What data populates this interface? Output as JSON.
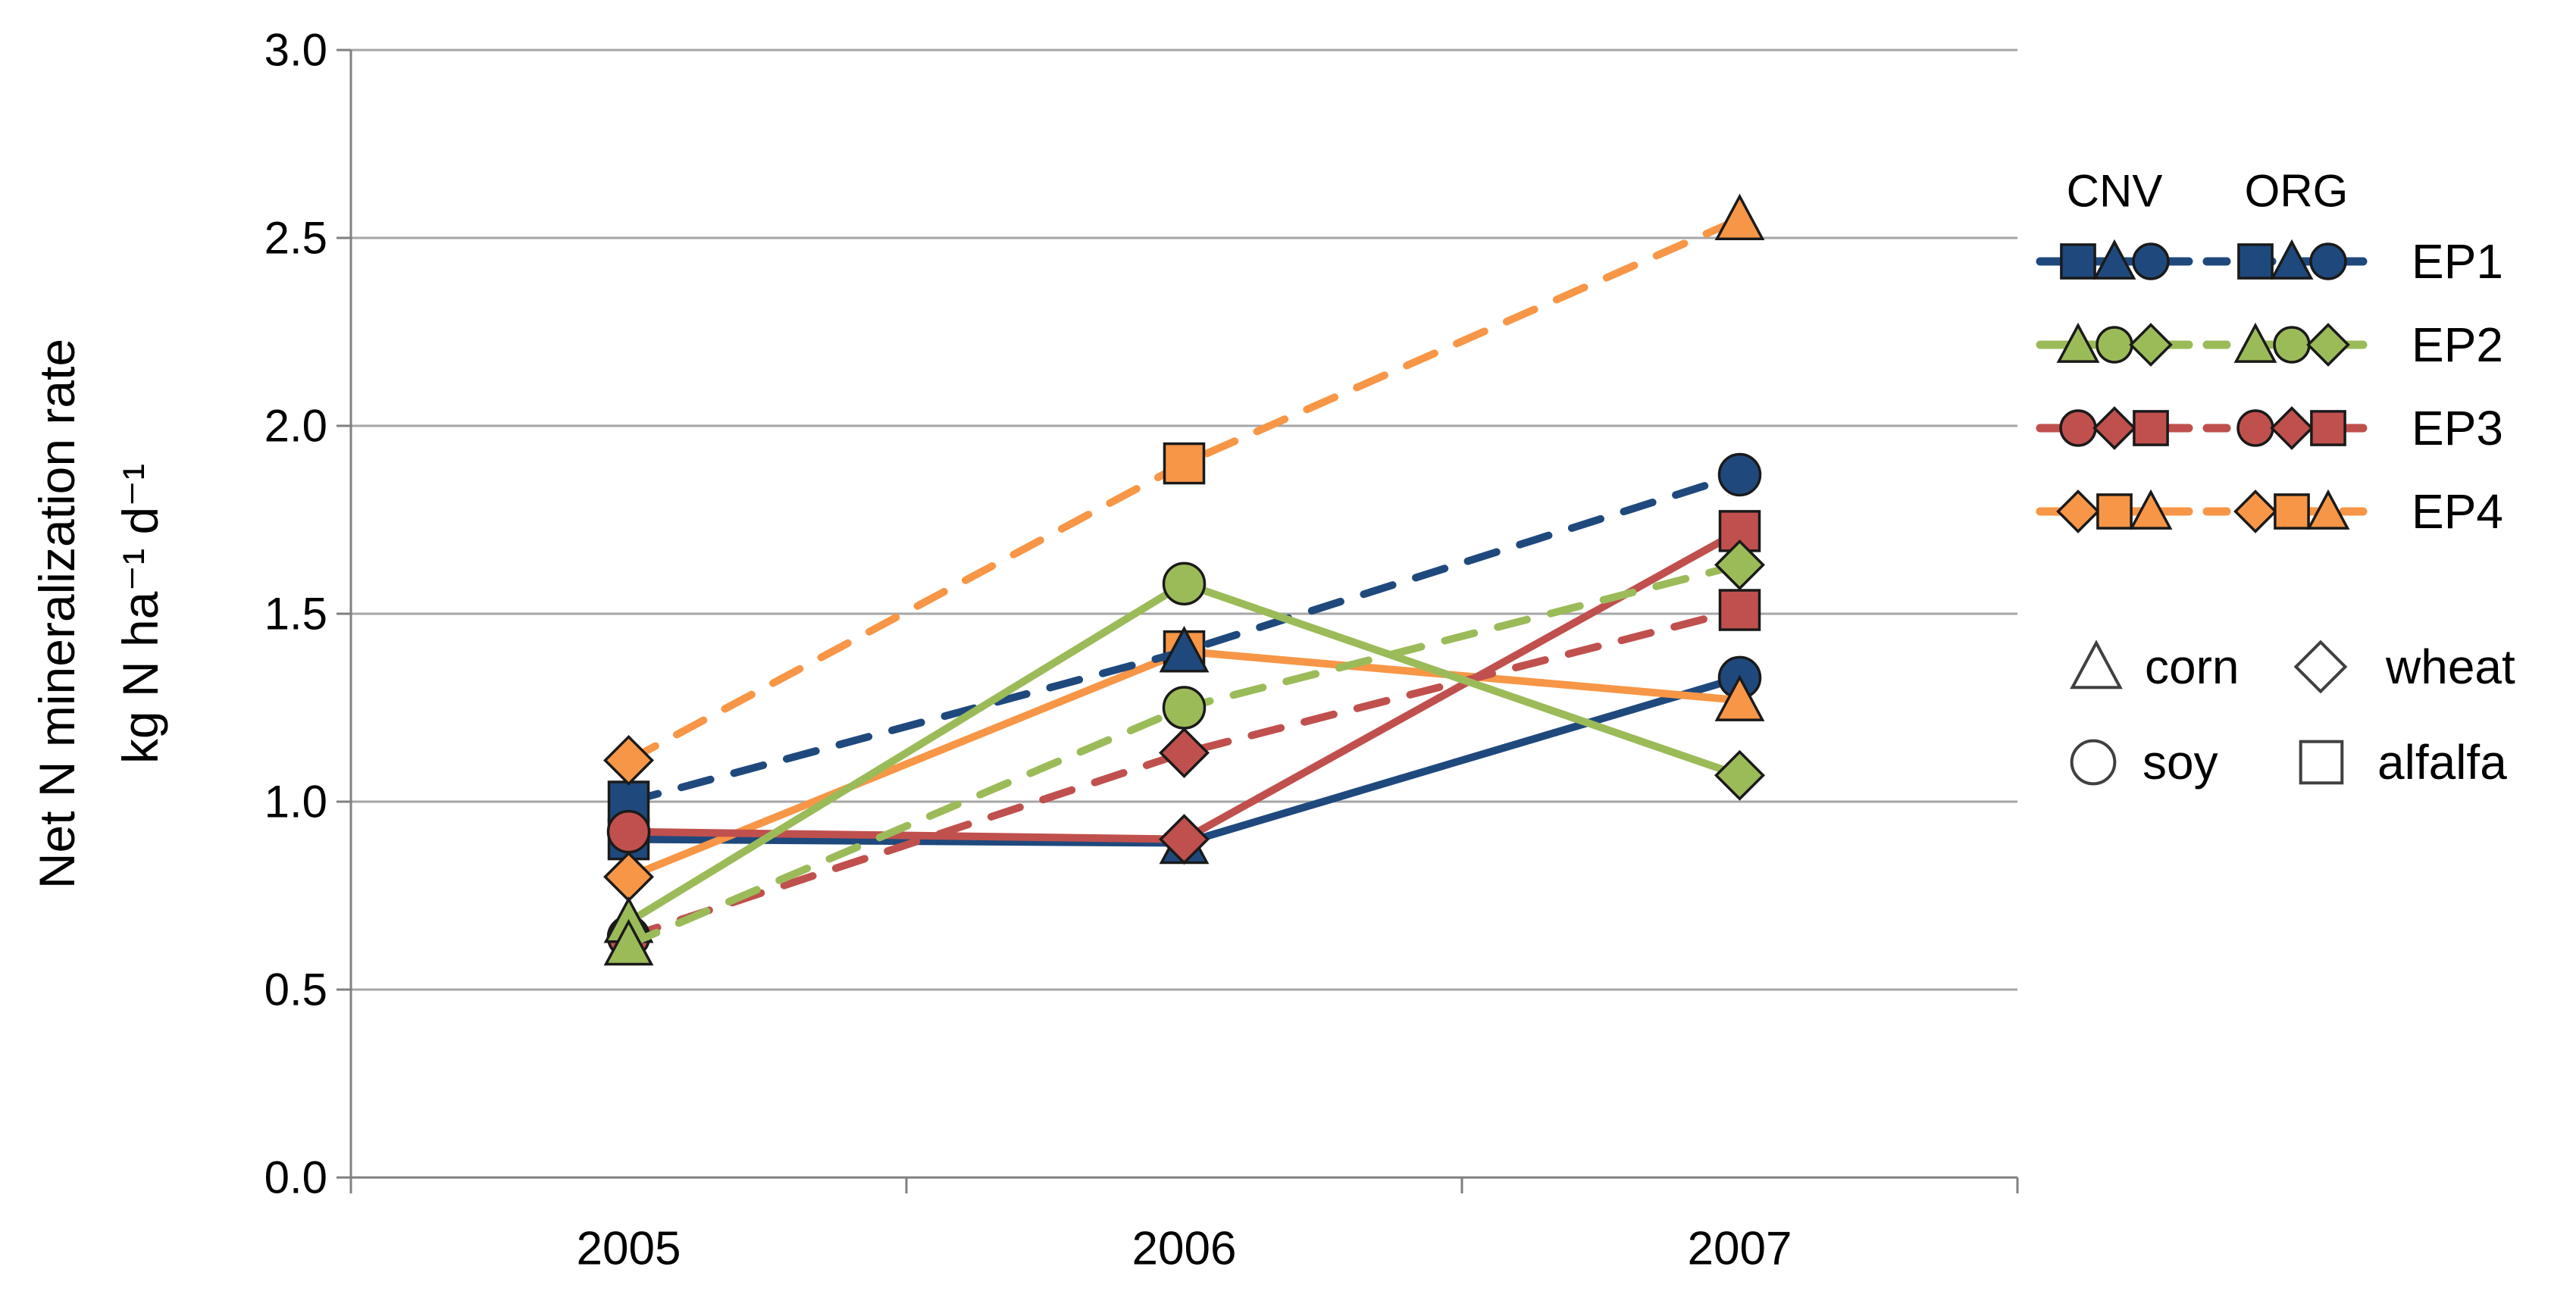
{
  "figure": {
    "y_axis_title_line1": "Net N mineralization rate",
    "y_axis_title_line2": "kg N ha⁻¹ d⁻¹",
    "background": "#FFFFFF",
    "grid_color": "#A6A6A6",
    "axis_color": "#808080"
  },
  "chart_data": {
    "type": "line",
    "categories": [
      "2005",
      "2006",
      "2007"
    ],
    "ylim": [
      0.0,
      3.0
    ],
    "yticks": [
      "0.0",
      "0.5",
      "1.0",
      "1.5",
      "2.0",
      "2.5",
      "3.0"
    ],
    "ylabel": "Net N mineralization rate kg N ha-1 d-1",
    "xlabel": "",
    "grid": true,
    "legend_position": "right",
    "marker_meaning": {
      "triangle": "corn",
      "circle": "soy",
      "diamond": "wheat",
      "square": "alfalfa"
    },
    "series": [
      {
        "name": "CNV EP1",
        "system": "CNV",
        "plot": "EP1",
        "color": "#1F497D",
        "line": "solid",
        "markers": [
          "square",
          "triangle",
          "circle"
        ],
        "values": [
          0.9,
          0.89,
          1.33
        ]
      },
      {
        "name": "CNV EP4",
        "system": "CNV",
        "plot": "EP4",
        "color": "#F79646",
        "line": "solid",
        "markers": [
          "diamond",
          "square",
          "triangle"
        ],
        "values": [
          0.8,
          1.4,
          1.27
        ]
      },
      {
        "name": "ORG EP1",
        "system": "ORG",
        "plot": "EP1",
        "color": "#1F497D",
        "line": "dashed",
        "markers": [
          "square",
          "triangle",
          "circle"
        ],
        "values": [
          1.0,
          1.4,
          1.87
        ]
      },
      {
        "name": "ORG EP3",
        "system": "ORG",
        "plot": "EP3",
        "color": "#C0504D",
        "line": "dashed",
        "markers": [
          "circle",
          "diamond",
          "square"
        ],
        "values": [
          0.64,
          1.13,
          1.51
        ]
      },
      {
        "name": "ORG EP4",
        "system": "ORG",
        "plot": "EP4",
        "color": "#F79646",
        "line": "dashed",
        "markers": [
          "diamond",
          "square",
          "triangle"
        ],
        "values": [
          1.11,
          1.9,
          2.55
        ]
      },
      {
        "name": "CNV EP3",
        "system": "CNV",
        "plot": "EP3",
        "color": "#C0504D",
        "line": "solid",
        "markers": [
          "circle",
          "diamond",
          "square"
        ],
        "values": [
          0.92,
          0.9,
          1.72
        ]
      },
      {
        "name": "CNV EP2",
        "system": "CNV",
        "plot": "EP2",
        "color": "#9BBB59",
        "line": "solid",
        "markers": [
          "triangle",
          "circle",
          "diamond"
        ],
        "values": [
          0.68,
          1.58,
          1.07
        ]
      },
      {
        "name": "ORG EP2",
        "system": "ORG",
        "plot": "EP2",
        "color": "#9BBB59",
        "line": "dashed",
        "markers": [
          "triangle",
          "circle",
          "diamond"
        ],
        "values": [
          0.62,
          1.25,
          1.63
        ]
      }
    ]
  },
  "legend": {
    "col_headers": [
      "CNV",
      "ORG"
    ],
    "rows": [
      {
        "label": "EP1",
        "color": "#1F497D",
        "markers": [
          "square",
          "triangle",
          "circle"
        ]
      },
      {
        "label": "EP2",
        "color": "#9BBB59",
        "markers": [
          "triangle",
          "circle",
          "diamond"
        ]
      },
      {
        "label": "EP3",
        "color": "#C0504D",
        "markers": [
          "circle",
          "diamond",
          "square"
        ]
      },
      {
        "label": "EP4",
        "color": "#F79646",
        "markers": [
          "diamond",
          "square",
          "triangle"
        ]
      }
    ],
    "crops": [
      {
        "marker": "triangle",
        "label": "corn"
      },
      {
        "marker": "diamond",
        "label": "wheat"
      },
      {
        "marker": "circle",
        "label": "soy"
      },
      {
        "marker": "square",
        "label": "alfalfa"
      }
    ]
  }
}
